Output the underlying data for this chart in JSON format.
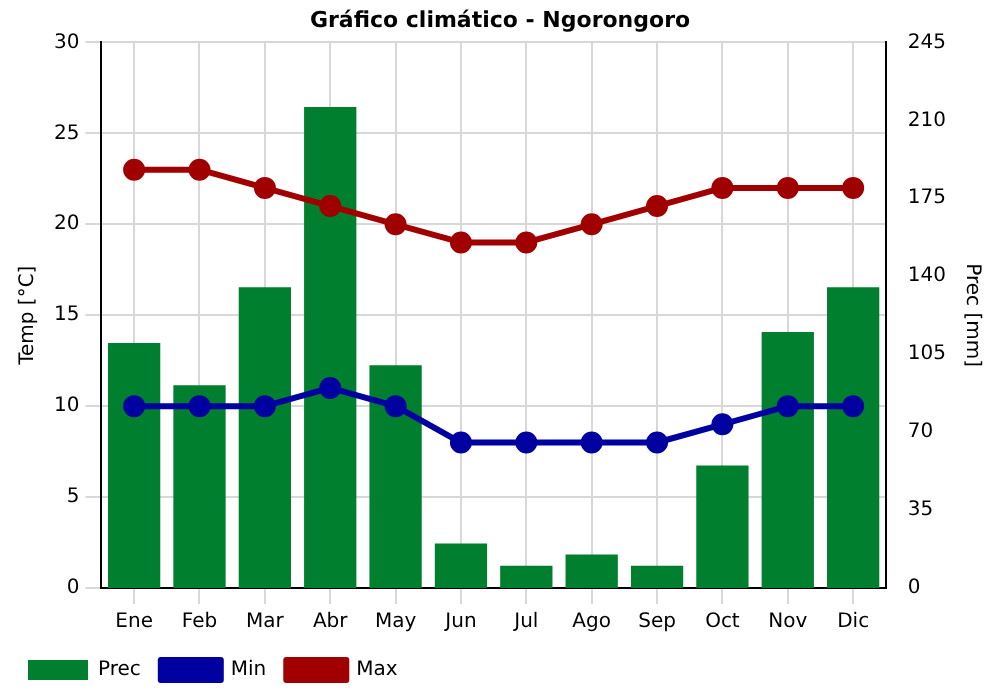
{
  "chart_data": {
    "type": "line",
    "title": "Gráfico climático - Ngorongoro",
    "ylabel": "Temp [°C]",
    "y2label": "Prec [mm]",
    "categories": [
      "Ene",
      "Feb",
      "Mar",
      "Abr",
      "May",
      "Jun",
      "Jul",
      "Ago",
      "Sep",
      "Oct",
      "Nov",
      "Dic"
    ],
    "series": [
      {
        "name": "Prec",
        "type": "bar",
        "axis": "y2",
        "color": "#007f2f",
        "values": [
          110,
          91,
          135,
          216,
          100,
          20,
          10,
          15,
          10,
          55,
          115,
          135
        ]
      },
      {
        "name": "Min",
        "color": "#0000a0",
        "values": [
          10,
          10,
          10,
          11,
          10,
          8,
          8,
          8,
          8,
          9,
          10,
          10
        ]
      },
      {
        "name": "Max",
        "color": "#a00000",
        "values": [
          23,
          23,
          22,
          21,
          20,
          19,
          19,
          20,
          21,
          22,
          22,
          22
        ]
      }
    ],
    "ylim": [
      0,
      30
    ],
    "yticks": [
      0,
      5,
      10,
      15,
      20,
      25,
      30
    ],
    "y2lim": [
      0,
      245
    ],
    "y2ticks": [
      0,
      35,
      70,
      105,
      140,
      175,
      210,
      245
    ],
    "grid": true,
    "legend": "bottom",
    "marker": "circle",
    "line_style": "solid"
  }
}
